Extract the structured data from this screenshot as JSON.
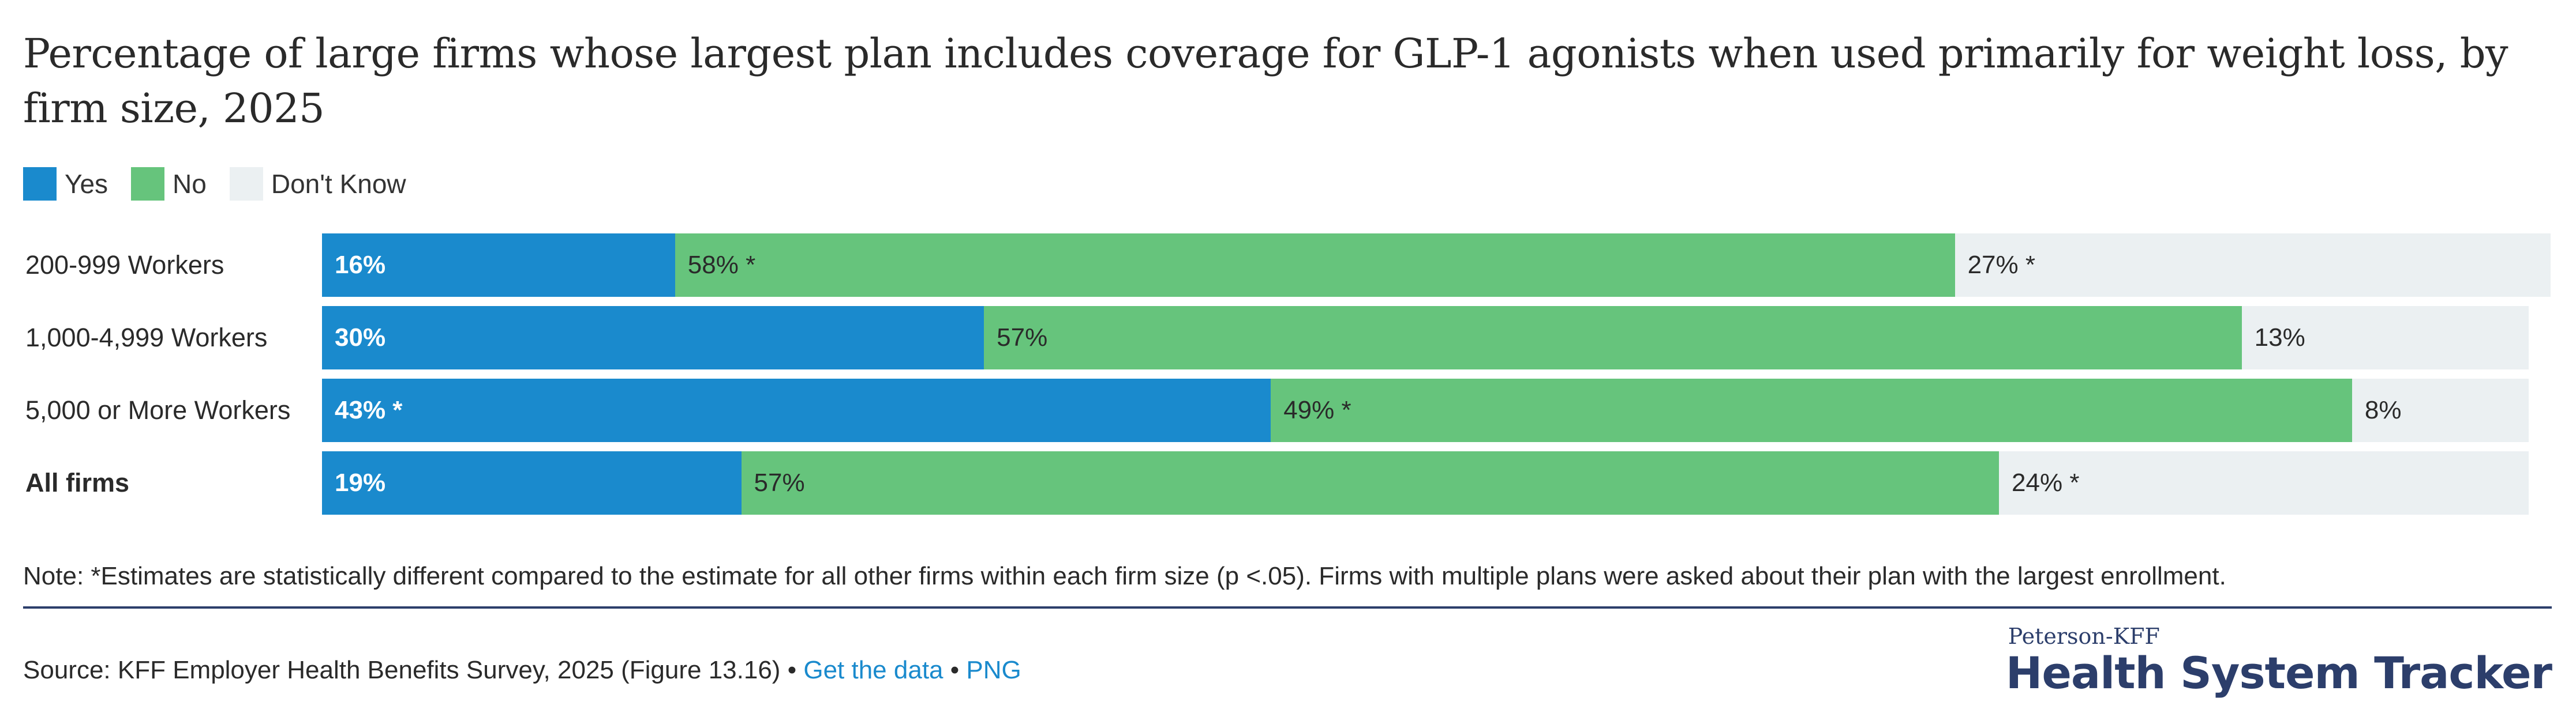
{
  "chart_data": {
    "type": "bar",
    "orientation": "horizontal",
    "stacked": true,
    "title": "Percentage of large firms whose largest plan includes coverage for GLP-1 agonists when used primarily for weight loss, by firm size, 2025",
    "categories": [
      "200-999 Workers",
      "1,000-4,999 Workers",
      "5,000 or More Workers",
      "All firms"
    ],
    "bold_categories": [
      "All firms"
    ],
    "series": [
      {
        "name": "Yes",
        "color": "#1a8acd",
        "values": [
          16,
          30,
          43,
          19
        ],
        "labels": [
          "16%",
          "30%",
          "43%",
          "19%"
        ],
        "significant": [
          false,
          false,
          true,
          false
        ]
      },
      {
        "name": "No",
        "color": "#66c47c",
        "values": [
          58,
          57,
          49,
          57
        ],
        "labels": [
          "58%",
          "57%",
          "49%",
          "57%"
        ],
        "significant": [
          true,
          false,
          true,
          false
        ]
      },
      {
        "name": "Don't Know",
        "color": "#ebf0f2",
        "values": [
          27,
          13,
          8,
          24
        ],
        "labels": [
          "27%",
          "13%",
          "8%",
          "24%"
        ],
        "significant": [
          true,
          false,
          false,
          true
        ]
      }
    ],
    "significance_marker": "*",
    "legend_position": "top-left",
    "xlim": [
      0,
      101
    ]
  },
  "note": "Note: *Estimates are statistically different compared to the estimate for all other firms within each firm size (p <.05). Firms with multiple plans were asked about their plan with the largest enrollment.",
  "source": {
    "text": "Source: KFF Employer Health Benefits Survey, 2025 (Figure 13.16)",
    "separator": "•",
    "get_data_label": "Get the data",
    "png_label": "PNG"
  },
  "brand": {
    "top": "Peterson-KFF",
    "main": "Health System Tracker"
  }
}
